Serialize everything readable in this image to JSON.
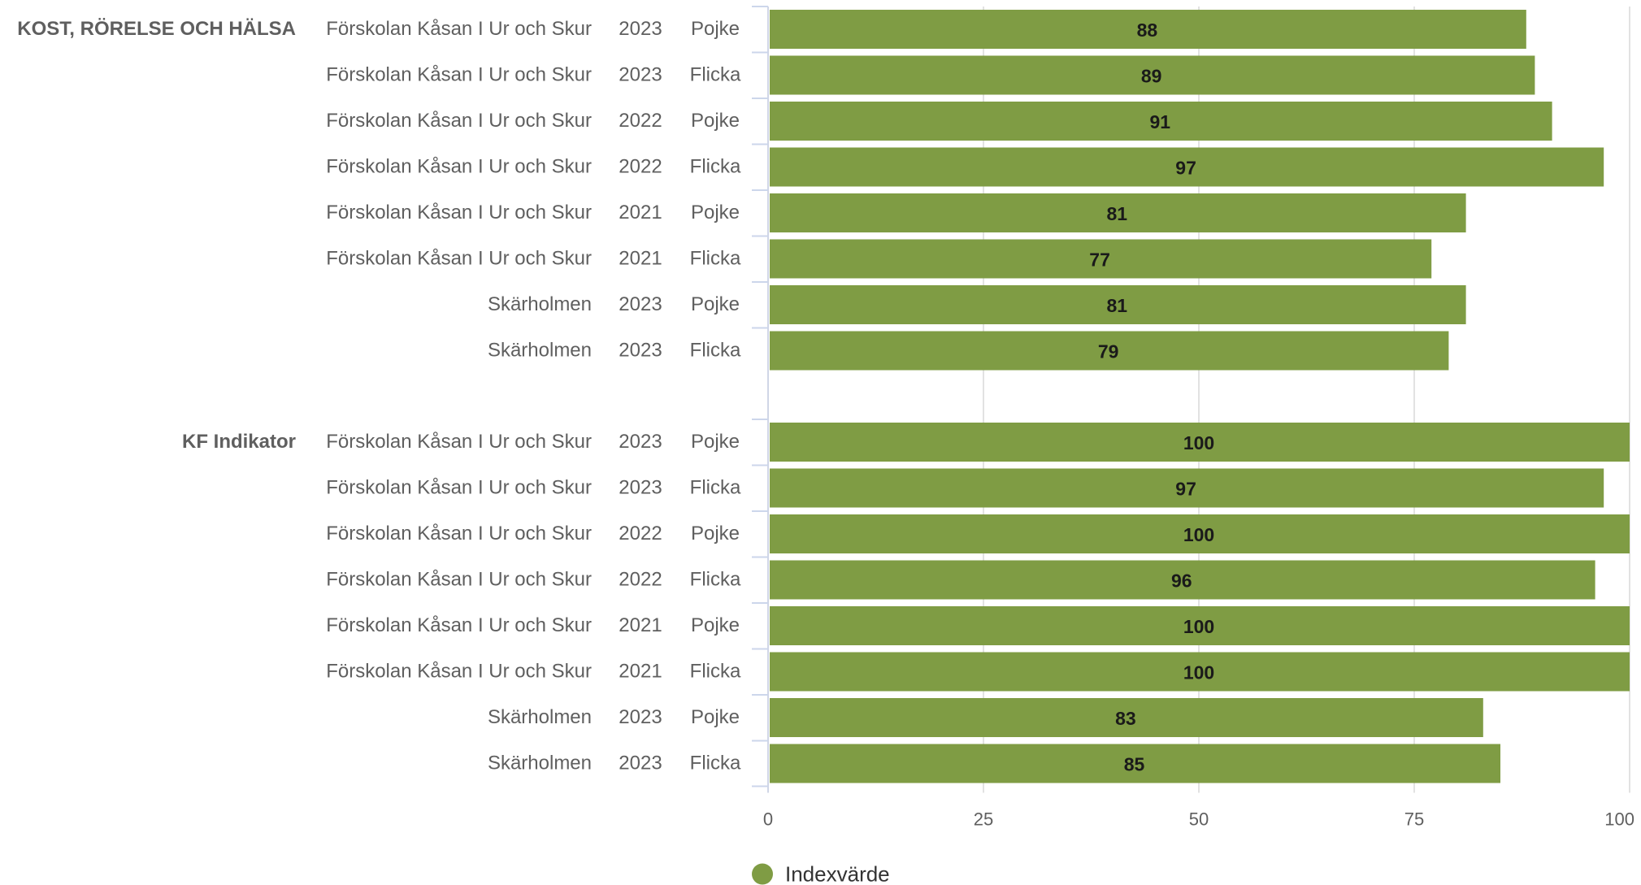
{
  "chart_data": {
    "type": "bar",
    "orientation": "horizontal",
    "xlim": [
      0,
      100
    ],
    "ticks": [
      0,
      25,
      50,
      75,
      100
    ],
    "grid": true,
    "legend_position": "bottom",
    "bar_color": "#7f9c44",
    "series": [
      {
        "name": "Indexvärde"
      }
    ],
    "groups": [
      {
        "label": "KOST, RÖRELSE OCH HÄLSA",
        "rows": [
          {
            "unit": "Förskolan Kåsan I Ur och Skur",
            "year": "2023",
            "gender": "Pojke",
            "value": 88
          },
          {
            "unit": "Förskolan Kåsan I Ur och Skur",
            "year": "2023",
            "gender": "Flicka",
            "value": 89
          },
          {
            "unit": "Förskolan Kåsan I Ur och Skur",
            "year": "2022",
            "gender": "Pojke",
            "value": 91
          },
          {
            "unit": "Förskolan Kåsan I Ur och Skur",
            "year": "2022",
            "gender": "Flicka",
            "value": 97
          },
          {
            "unit": "Förskolan Kåsan I Ur och Skur",
            "year": "2021",
            "gender": "Pojke",
            "value": 81
          },
          {
            "unit": "Förskolan Kåsan I Ur och Skur",
            "year": "2021",
            "gender": "Flicka",
            "value": 77
          },
          {
            "unit": "Skärholmen",
            "year": "2023",
            "gender": "Pojke",
            "value": 81
          },
          {
            "unit": "Skärholmen",
            "year": "2023",
            "gender": "Flicka",
            "value": 79
          }
        ]
      },
      {
        "label": "KF Indikator",
        "rows": [
          {
            "unit": "Förskolan Kåsan I Ur och Skur",
            "year": "2023",
            "gender": "Pojke",
            "value": 100
          },
          {
            "unit": "Förskolan Kåsan I Ur och Skur",
            "year": "2023",
            "gender": "Flicka",
            "value": 97
          },
          {
            "unit": "Förskolan Kåsan I Ur och Skur",
            "year": "2022",
            "gender": "Pojke",
            "value": 100
          },
          {
            "unit": "Förskolan Kåsan I Ur och Skur",
            "year": "2022",
            "gender": "Flicka",
            "value": 96
          },
          {
            "unit": "Förskolan Kåsan I Ur och Skur",
            "year": "2021",
            "gender": "Pojke",
            "value": 100
          },
          {
            "unit": "Förskolan Kåsan I Ur och Skur",
            "year": "2021",
            "gender": "Flicka",
            "value": 100
          },
          {
            "unit": "Skärholmen",
            "year": "2023",
            "gender": "Pojke",
            "value": 83
          },
          {
            "unit": "Skärholmen",
            "year": "2023",
            "gender": "Flicka",
            "value": 85
          }
        ]
      }
    ]
  }
}
